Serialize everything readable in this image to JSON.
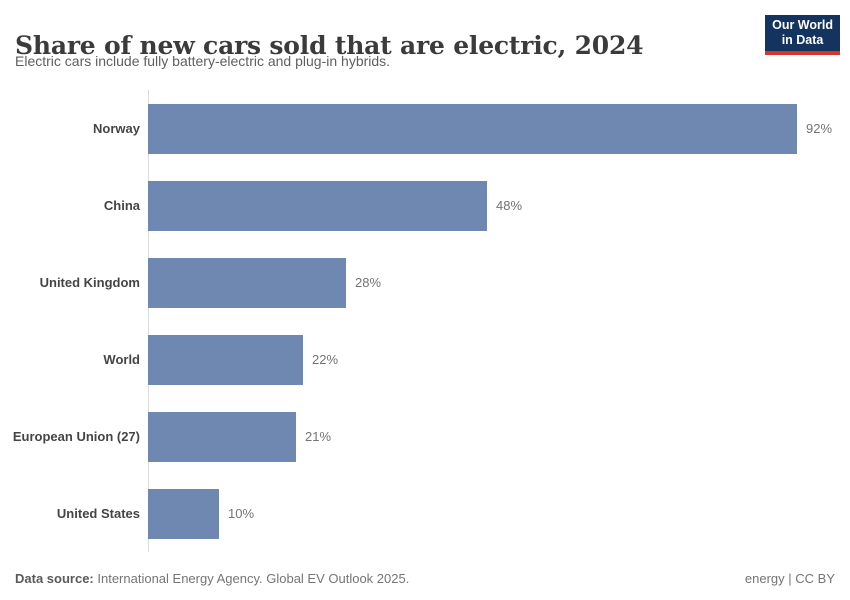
{
  "header": {
    "title": "Share of new cars sold that are electric, 2024",
    "subtitle": "Electric cars include fully battery-electric and plug-in hybrids.",
    "logo": {
      "line1": "Our World",
      "line2": "in Data",
      "bg_color": "#15335f",
      "accent_color": "#d7342a"
    }
  },
  "chart_data": {
    "type": "bar",
    "orientation": "horizontal",
    "categories": [
      "Norway",
      "China",
      "United Kingdom",
      "World",
      "European Union (27)",
      "United States"
    ],
    "values": [
      92,
      48,
      28,
      22,
      21,
      10
    ],
    "value_labels": [
      "92%",
      "48%",
      "28%",
      "22%",
      "21%",
      "10%"
    ],
    "unit": "%",
    "title": "Share of new cars sold that are electric, 2024",
    "xlabel": "",
    "ylabel": "",
    "xlim": [
      0,
      92
    ],
    "grid": false,
    "legend": false,
    "bar_color": "#6e88b1",
    "axis_color": "#dcdcdc"
  },
  "footer": {
    "source_label": "Data source:",
    "source_text": " International Energy Agency. Global EV Outlook 2025.",
    "license": "energy | CC BY"
  }
}
